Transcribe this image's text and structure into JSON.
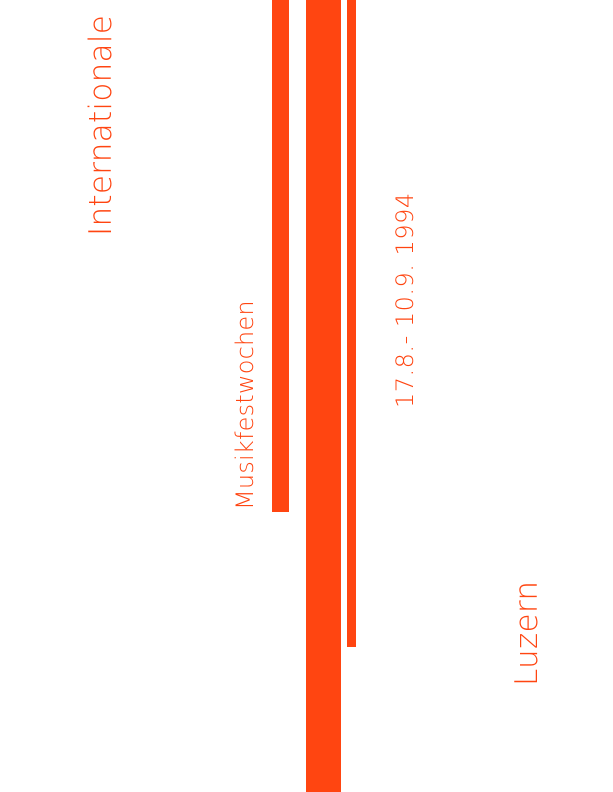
{
  "poster": {
    "title_word": "Internationale",
    "subtitle_word": "Musikfestwochen",
    "dates": "17.8.- 10.9. 1994",
    "city": "Luzern"
  },
  "colors": {
    "accent": "#ff4511",
    "background": "#ffffff"
  }
}
